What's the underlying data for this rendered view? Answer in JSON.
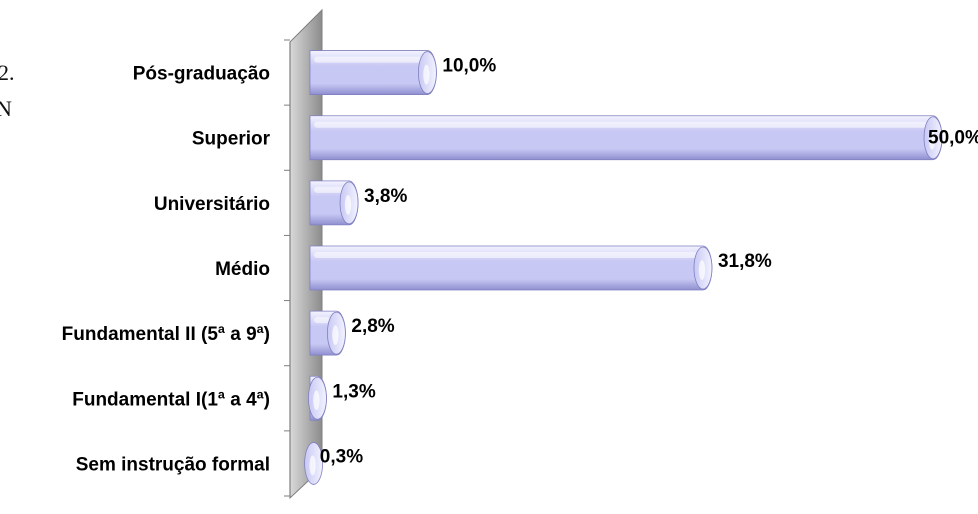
{
  "page_fragments": {
    "line1": "2.",
    "line2": "N"
  },
  "colors": {
    "bar_fill_light": "#f3f3ff",
    "bar_fill_mid": "#c8c8f4",
    "bar_fill_dark": "#8f8fd0",
    "bar_stroke": "#8080c0",
    "wall_light": "#d9d9d9",
    "wall_dark": "#8c8c8c",
    "axis": "#7f7f7f",
    "text": "#000000"
  },
  "chart_data": {
    "type": "bar",
    "orientation": "horizontal",
    "categories": [
      "Pós-graduação",
      "Superior",
      "Universitário",
      "Médio",
      "Fundamental II (5ª a 9ª)",
      "Fundamental  I(1ª a 4ª)",
      "Sem instrução formal"
    ],
    "values": [
      10.0,
      50.0,
      3.8,
      31.8,
      2.8,
      1.3,
      0.3
    ],
    "value_labels": [
      "10,0%",
      "50,0%",
      "3,8%",
      "31,8%",
      "2,8%",
      "1,3%",
      "0,3%"
    ],
    "title": "",
    "xlabel": "",
    "ylabel": "",
    "xlim": [
      0,
      50
    ],
    "grid": false,
    "legend": "none",
    "style": "3d-cylinder"
  }
}
